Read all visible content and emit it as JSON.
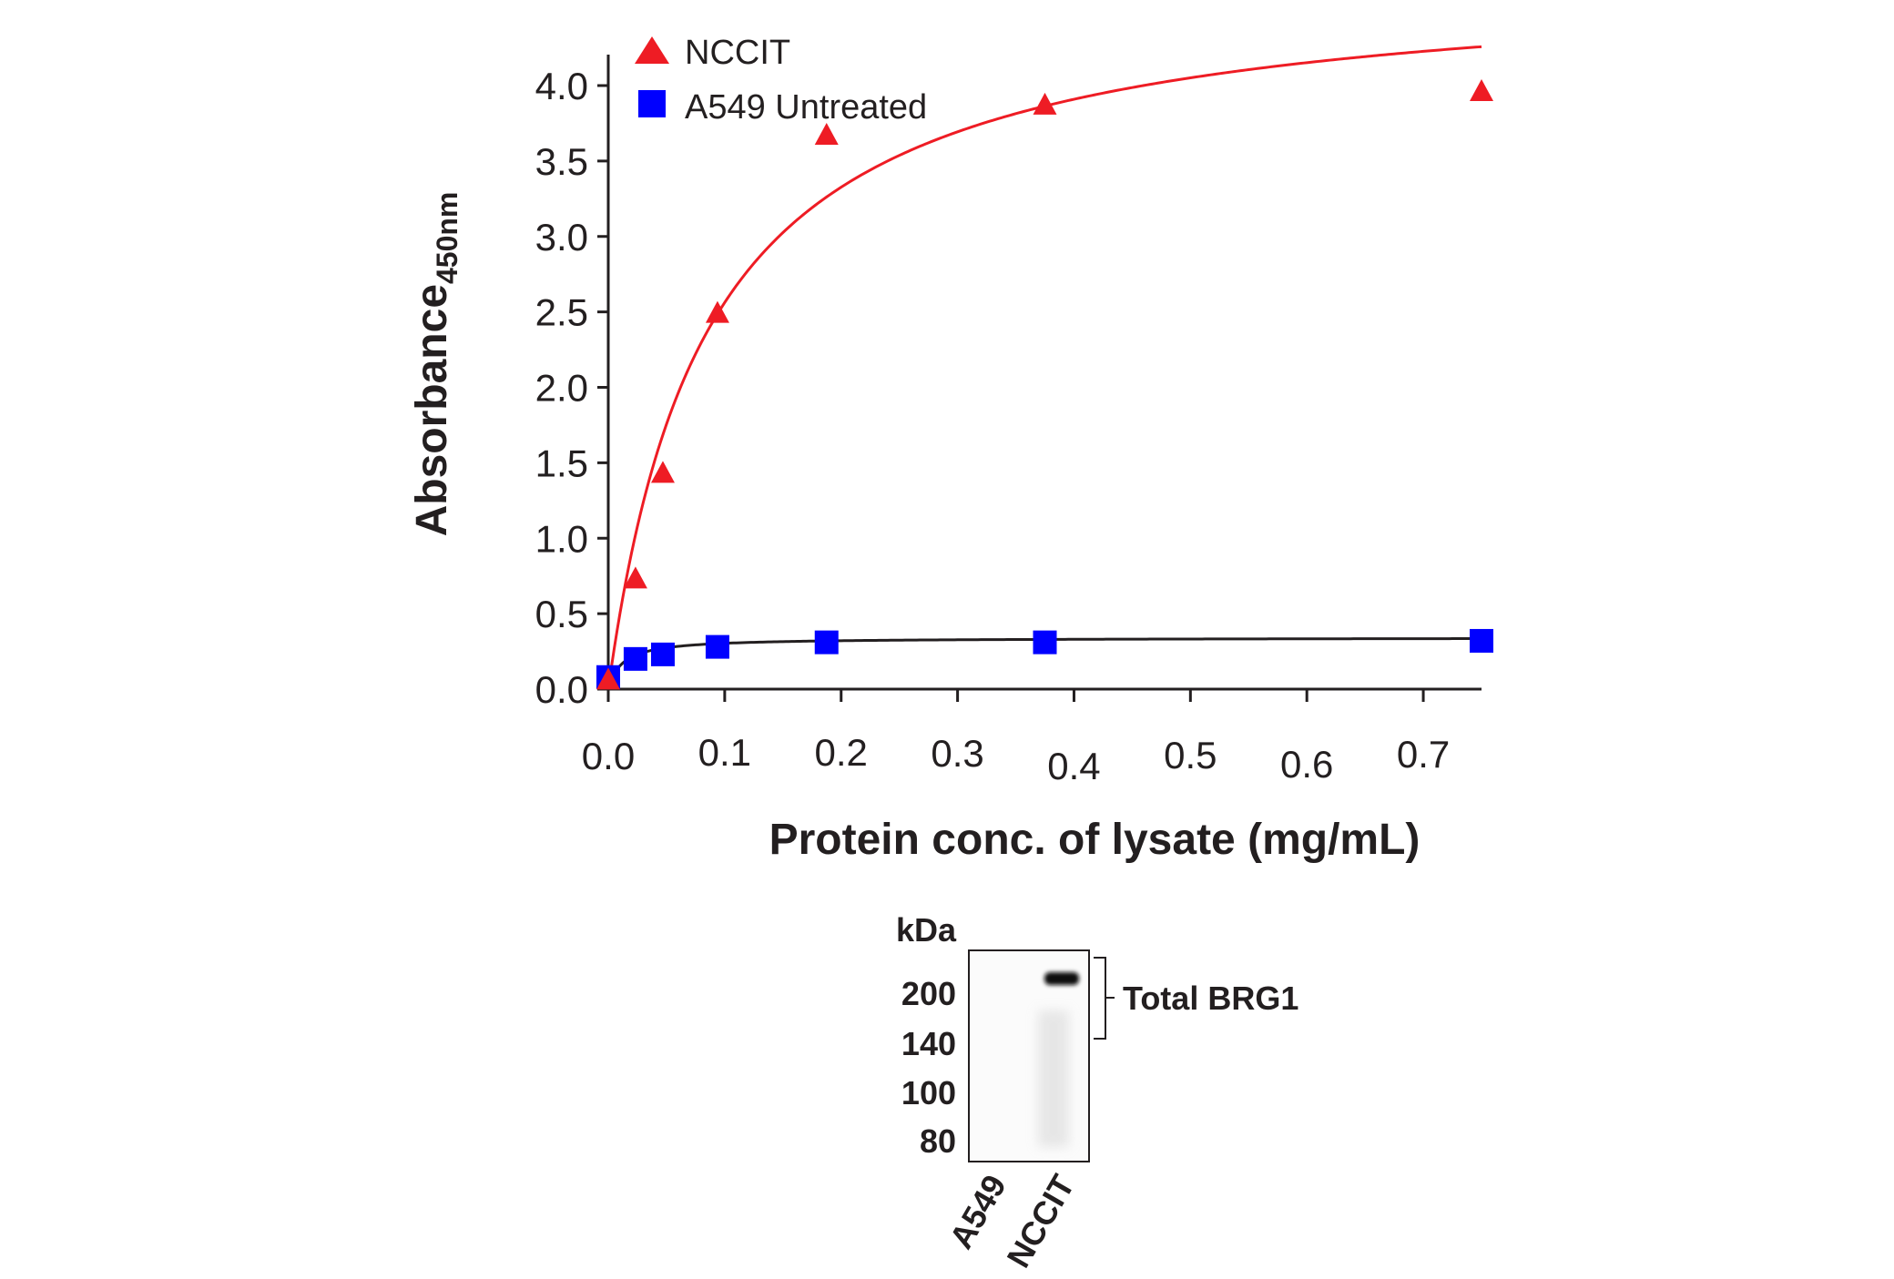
{
  "chart_data": {
    "type": "scatter",
    "title": "",
    "xlabel": "Protein conc. of lysate (mg/mL)",
    "ylabel_main": "Absorbance",
    "ylabel_sub": "450nm",
    "xlim": [
      0,
      0.75
    ],
    "ylim": [
      0,
      4.3
    ],
    "x_ticks": [
      0.0,
      0.1,
      0.2,
      0.3,
      0.4,
      0.5,
      0.6,
      0.7
    ],
    "x_tick_labels": [
      "0.0",
      "0.1",
      "0.2",
      "0.3",
      "0.4",
      "0.5",
      "0.6",
      "0.7"
    ],
    "y_ticks": [
      0.0,
      0.5,
      1.0,
      1.5,
      2.0,
      2.5,
      3.0,
      3.5,
      4.0
    ],
    "y_tick_labels": [
      "0.0",
      "0.5",
      "1.0",
      "1.5",
      "2.0",
      "2.5",
      "3.0",
      "3.5",
      "4.0"
    ],
    "legend_position": "top-left",
    "series": [
      {
        "name": "NCCIT",
        "marker": "triangle",
        "color": "#ee1c24",
        "fit": {
          "model": "saturation",
          "bmax": 4.74,
          "kd": 0.085
        },
        "x": [
          0.0,
          0.0234,
          0.0469,
          0.0938,
          0.1875,
          0.375,
          0.75
        ],
        "values": [
          0.07,
          0.74,
          1.44,
          2.5,
          3.68,
          3.88,
          3.97
        ]
      },
      {
        "name": "A549 Untreated",
        "marker": "square",
        "color": "#0000ff",
        "fit": {
          "model": "saturation",
          "bmax": 0.34,
          "kd": 0.012
        },
        "x": [
          0.0,
          0.0234,
          0.0469,
          0.0938,
          0.1875,
          0.375,
          0.75
        ],
        "values": [
          0.08,
          0.2,
          0.23,
          0.28,
          0.31,
          0.31,
          0.32
        ]
      }
    ]
  },
  "western_blot": {
    "unit_label": "kDa",
    "markers": [
      "200",
      "140",
      "100",
      "80"
    ],
    "lanes": [
      "A549",
      "NCCIT"
    ],
    "band_label": "Total BRG1"
  }
}
